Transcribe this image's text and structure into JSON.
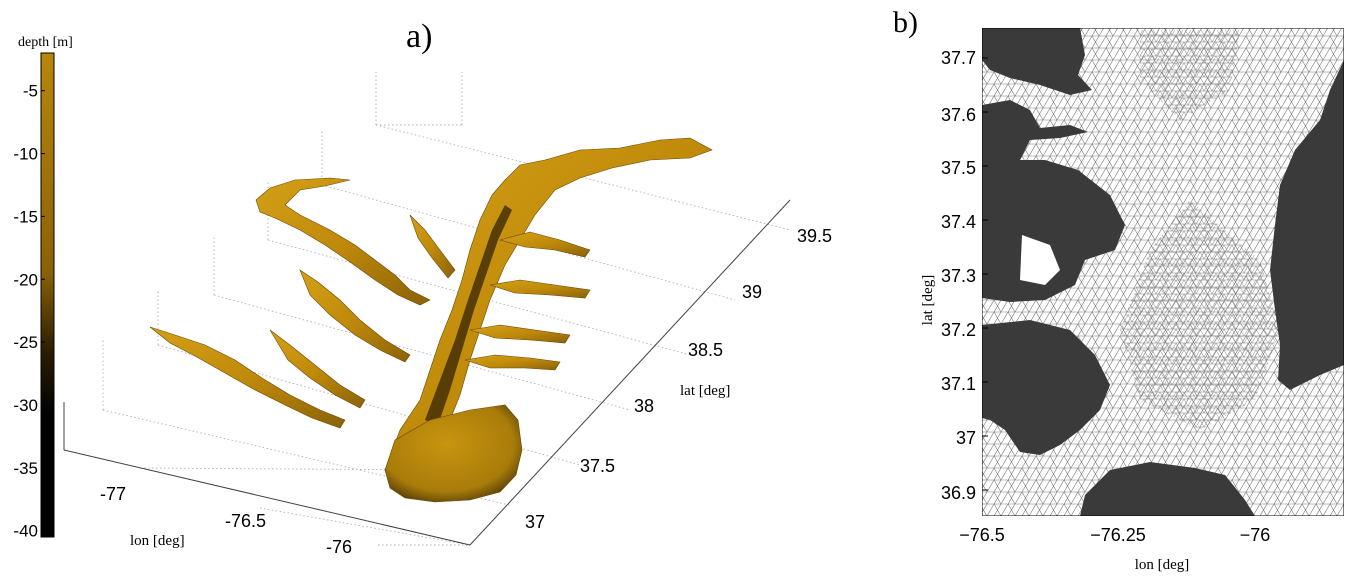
{
  "panel_a": {
    "label": "a)",
    "colorbar": {
      "title": "depth  [m]",
      "ticks": [
        "-5",
        "-10",
        "-15",
        "-20",
        "-25",
        "-30",
        "-35",
        "-40"
      ],
      "color_top": "#b8860b",
      "color_bottom": "#000000"
    },
    "xlabel": "lon  [deg]",
    "ylabel": "lat  [deg]",
    "lon_ticks": [
      "-77",
      "-76.5",
      "-76"
    ],
    "lat_ticks": [
      "37",
      "37.5",
      "38",
      "38.5",
      "39",
      "39.5"
    ],
    "surface_color": "#c8960c"
  },
  "panel_b": {
    "label": "b)",
    "xlabel": "lon  [deg]",
    "ylabel": "lat  [deg]",
    "lon_ticks": [
      "−76.5",
      "−76.25",
      "−76"
    ],
    "lat_ticks": [
      "37.7",
      "37.6",
      "37.5",
      "37.4",
      "37.3",
      "37.2",
      "37.1",
      "37",
      "36.9"
    ],
    "land_color": "#3a3a3a",
    "mesh_color": "#7a7a7a"
  },
  "chart_data": [
    {
      "type": "surface",
      "description_units": "depth in m",
      "colorbar_range": [
        -40,
        -2
      ],
      "xlim": [
        -77.3,
        -75.6
      ],
      "ylim": [
        36.8,
        39.7
      ],
      "zlabel": "depth  [m]"
    },
    {
      "type": "mesh",
      "xlim": [
        -76.5,
        -75.85
      ],
      "ylim": [
        36.86,
        37.75
      ]
    }
  ]
}
